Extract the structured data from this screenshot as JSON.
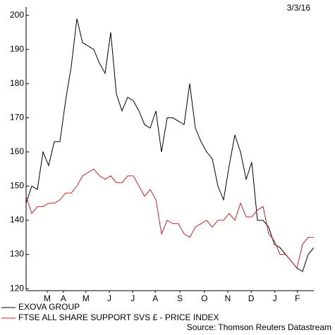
{
  "chart_data": {
    "type": "line",
    "date": "3/3/16",
    "source": "Source: Thomson Reuters Datastream",
    "xlim": [
      0,
      51
    ],
    "xticks": [
      {
        "value": 3.75,
        "label": "M"
      },
      {
        "value": 6.6,
        "label": "A"
      },
      {
        "value": 10.6,
        "label": "M"
      },
      {
        "value": 14.75,
        "label": "J"
      },
      {
        "value": 18.9,
        "label": "J"
      },
      {
        "value": 22.9,
        "label": "A"
      },
      {
        "value": 27.25,
        "label": "S"
      },
      {
        "value": 31.6,
        "label": "O"
      },
      {
        "value": 35.75,
        "label": "N"
      },
      {
        "value": 39.9,
        "label": "D"
      },
      {
        "value": 44.1,
        "label": "J"
      },
      {
        "value": 48.1,
        "label": "F"
      }
    ],
    "ylim": [
      119.4,
      202
    ],
    "yticks": [
      120,
      130,
      140,
      150,
      160,
      170,
      180,
      190,
      200
    ],
    "series": [
      {
        "name": "EXOVA GROUP",
        "color": "#000000",
        "values": [
          145,
          150,
          149,
          160,
          156,
          163,
          163,
          175,
          185,
          199,
          192,
          191,
          190,
          186,
          183,
          195,
          177,
          172,
          176,
          175,
          172,
          168,
          167,
          172,
          160,
          170,
          170,
          169,
          168,
          180,
          167,
          163,
          160,
          158,
          150,
          146,
          156,
          165,
          160,
          152,
          157,
          140,
          140,
          138,
          133,
          132,
          130,
          128,
          126,
          125,
          130,
          132
        ]
      },
      {
        "name": "FTSE ALL SHARE SUPPORT SVS £ - PRICE INDEX",
        "color": "#d62020",
        "values": [
          147,
          142,
          144,
          144,
          145,
          145,
          146,
          148,
          148,
          150,
          153,
          154,
          155,
          153,
          152,
          153,
          151,
          151,
          153,
          153,
          150,
          147,
          149,
          146,
          136,
          140,
          139,
          139,
          136,
          135,
          138,
          139,
          140,
          138,
          140,
          140,
          142,
          140,
          145,
          141,
          141,
          143,
          144,
          136,
          134,
          130,
          130,
          128,
          126,
          133,
          135,
          135
        ]
      }
    ]
  }
}
